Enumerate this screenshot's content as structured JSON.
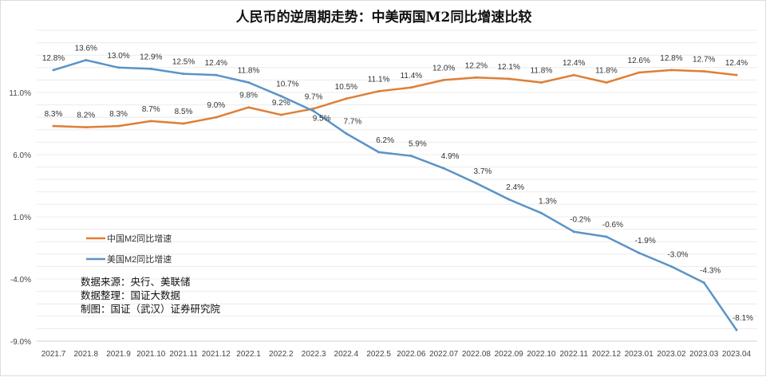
{
  "chart_data": {
    "type": "line",
    "title": "人民币的逆周期走势：中美两国M2同比增速比较",
    "categories": [
      "2021.7",
      "2021.8",
      "2021.9",
      "2021.10",
      "2021.11",
      "2021.12",
      "2022.1",
      "2022.2",
      "2022.3",
      "2022.4",
      "2022.5",
      "2022.06",
      "2022.07",
      "2022.08",
      "2022.09",
      "2022.10",
      "2022.11",
      "2022.12",
      "2023.01",
      "2023.02",
      "2023.03",
      "2023.04"
    ],
    "series": [
      {
        "name": "中国M2同比增速",
        "color": "#e07e35",
        "values": [
          8.3,
          8.2,
          8.3,
          8.7,
          8.5,
          9.0,
          9.8,
          9.2,
          9.7,
          10.5,
          11.1,
          11.4,
          12.0,
          12.2,
          12.1,
          11.8,
          12.4,
          11.8,
          12.6,
          12.8,
          12.7,
          12.4
        ]
      },
      {
        "name": "美国M2同比增速",
        "color": "#5b93c7",
        "values": [
          12.8,
          13.6,
          13.0,
          12.9,
          12.5,
          12.4,
          11.8,
          10.7,
          9.5,
          7.7,
          6.2,
          5.9,
          4.9,
          3.7,
          2.4,
          1.3,
          -0.2,
          -0.6,
          -1.9,
          -3.0,
          -4.3,
          -8.1
        ]
      }
    ],
    "yticks": [
      "11.0%",
      "6.0%",
      "1.0%",
      "-4.0%",
      "-9.0%"
    ],
    "ytick_values": [
      11,
      6,
      1,
      -4,
      -9
    ],
    "ylim": [
      -9,
      16
    ],
    "grid": true,
    "legend": "left-middle"
  },
  "notes": [
    "数据来源：央行、美联储",
    "数据整理：国证大数据",
    "制图：国证（武汉）证券研究院"
  ]
}
